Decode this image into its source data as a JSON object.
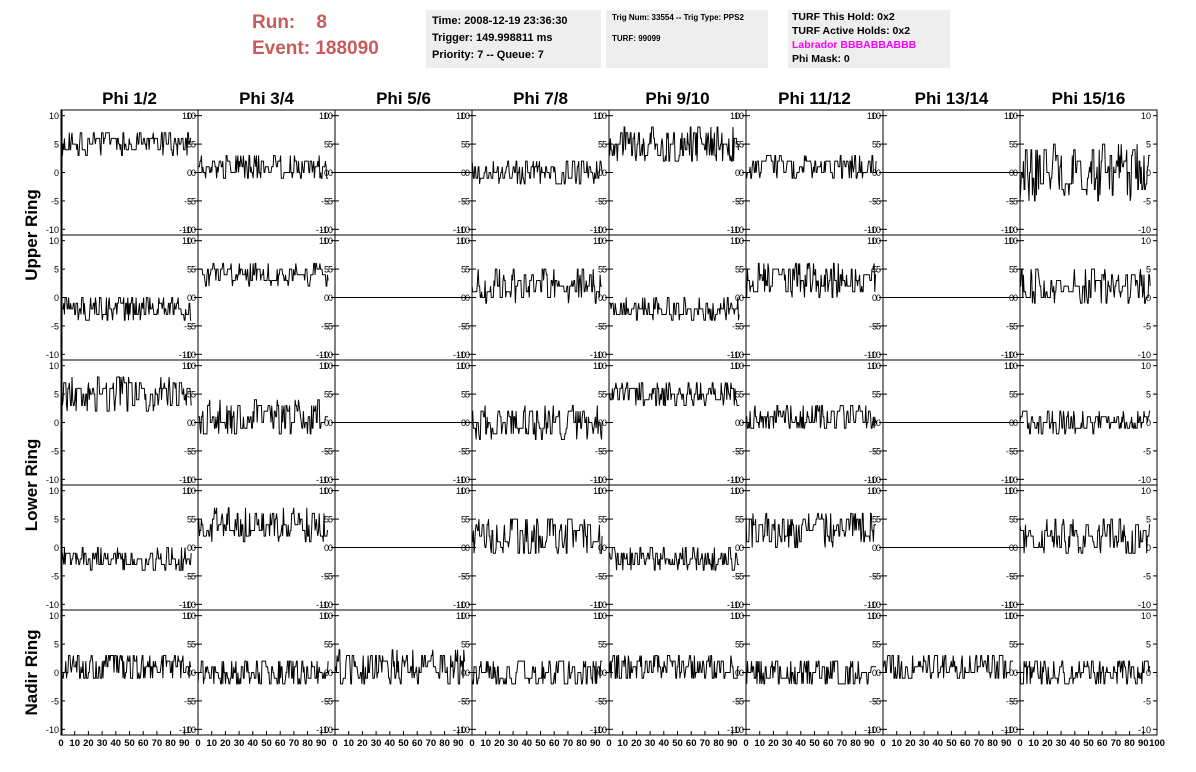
{
  "header": {
    "run_label": "Run:",
    "run_value": "8",
    "event_label": "Event:",
    "event_value": "188090",
    "time": "Time: 2008-12-19 23:36:30",
    "trigger": "Trigger: 149.998811 ms",
    "priority": "Priority: 7 -- Queue: 7",
    "trig_num": "Trig Num: 33554 -- Trig Type: PPS2",
    "turf": "TURF: 99099",
    "turf_this_hold": "TURF This Hold: 0x2",
    "turf_active_holds": "TURF Active Holds: 0x2",
    "labrador": "Labrador BBBABBABBB",
    "phi_mask": "Phi Mask: 0"
  },
  "colors": {
    "title": "#c75b5b",
    "labrador": "#ff00ff",
    "info_bg": "#eeeeee",
    "trace": "#000000"
  },
  "chart_data": {
    "type": "line",
    "grid": false,
    "columns": [
      "Phi 1/2",
      "Phi 3/4",
      "Phi 5/6",
      "Phi 7/8",
      "Phi 9/10",
      "Phi 11/12",
      "Phi 13/14",
      "Phi 15/16"
    ],
    "ring_labels": [
      "Upper Ring",
      "Lower Ring",
      "Nadir Ring"
    ],
    "y_ticks": [
      10,
      5,
      0,
      -5,
      -10
    ],
    "x_ticks": [
      0,
      10,
      20,
      30,
      40,
      50,
      60,
      70,
      80,
      90,
      100
    ],
    "xlim": [
      0,
      100
    ],
    "ylim": [
      -11,
      11
    ],
    "panel_rows": [
      {
        "panels": [
          {
            "col": "Phi 1/2",
            "baseline": 5,
            "noise": 2,
            "flat": false
          },
          {
            "col": "Phi 3/4",
            "baseline": 1,
            "noise": 2,
            "flat": false
          },
          {
            "col": "Phi 5/6",
            "baseline": 0,
            "noise": 0,
            "flat": true
          },
          {
            "col": "Phi 7/8",
            "baseline": 0,
            "noise": 2,
            "flat": false
          },
          {
            "col": "Phi 9/10",
            "baseline": 5,
            "noise": 3,
            "flat": false
          },
          {
            "col": "Phi 11/12",
            "baseline": 1,
            "noise": 2,
            "flat": false
          },
          {
            "col": "Phi 13/14",
            "baseline": 0,
            "noise": 0,
            "flat": true
          },
          {
            "col": "Phi 15/16",
            "baseline": 0,
            "noise": 5,
            "flat": false
          }
        ]
      },
      {
        "panels": [
          {
            "col": "Phi 1/2",
            "baseline": -2,
            "noise": 2,
            "flat": false
          },
          {
            "col": "Phi 3/4",
            "baseline": 4,
            "noise": 2,
            "flat": false
          },
          {
            "col": "Phi 5/6",
            "baseline": 0,
            "noise": 0,
            "flat": true
          },
          {
            "col": "Phi 7/8",
            "baseline": 2,
            "noise": 3,
            "flat": false
          },
          {
            "col": "Phi 9/10",
            "baseline": -2,
            "noise": 2,
            "flat": false
          },
          {
            "col": "Phi 11/12",
            "baseline": 3,
            "noise": 3,
            "flat": false
          },
          {
            "col": "Phi 13/14",
            "baseline": 0,
            "noise": 0,
            "flat": true
          },
          {
            "col": "Phi 15/16",
            "baseline": 2,
            "noise": 3,
            "flat": false
          }
        ]
      },
      {
        "panels": [
          {
            "col": "Phi 1/2",
            "baseline": 5,
            "noise": 3,
            "flat": false
          },
          {
            "col": "Phi 3/4",
            "baseline": 1,
            "noise": 3,
            "flat": false
          },
          {
            "col": "Phi 5/6",
            "baseline": 0,
            "noise": 0,
            "flat": true
          },
          {
            "col": "Phi 7/8",
            "baseline": 0,
            "noise": 3,
            "flat": false
          },
          {
            "col": "Phi 9/10",
            "baseline": 5,
            "noise": 2,
            "flat": false
          },
          {
            "col": "Phi 11/12",
            "baseline": 1,
            "noise": 2,
            "flat": false
          },
          {
            "col": "Phi 13/14",
            "baseline": 0,
            "noise": 0,
            "flat": true
          },
          {
            "col": "Phi 15/16",
            "baseline": 0,
            "noise": 2,
            "flat": false
          }
        ]
      },
      {
        "panels": [
          {
            "col": "Phi 1/2",
            "baseline": -2,
            "noise": 2,
            "flat": false
          },
          {
            "col": "Phi 3/4",
            "baseline": 4,
            "noise": 3,
            "flat": false
          },
          {
            "col": "Phi 5/6",
            "baseline": 0,
            "noise": 0,
            "flat": true
          },
          {
            "col": "Phi 7/8",
            "baseline": 2,
            "noise": 3,
            "flat": false
          },
          {
            "col": "Phi 9/10",
            "baseline": -2,
            "noise": 2,
            "flat": false
          },
          {
            "col": "Phi 11/12",
            "baseline": 3,
            "noise": 3,
            "flat": false
          },
          {
            "col": "Phi 13/14",
            "baseline": 0,
            "noise": 0,
            "flat": true
          },
          {
            "col": "Phi 15/16",
            "baseline": 2,
            "noise": 3,
            "flat": false
          }
        ]
      },
      {
        "panels": [
          {
            "col": "Phi 1/2",
            "baseline": 1,
            "noise": 2.5,
            "flat": false
          },
          {
            "col": "Phi 3/4",
            "baseline": 0,
            "noise": 2.5,
            "flat": false
          },
          {
            "col": "Phi 5/6",
            "baseline": 1,
            "noise": 3,
            "flat": false
          },
          {
            "col": "Phi 7/8",
            "baseline": 0,
            "noise": 2.5,
            "flat": false
          },
          {
            "col": "Phi 9/10",
            "baseline": 1,
            "noise": 2.5,
            "flat": false
          },
          {
            "col": "Phi 11/12",
            "baseline": 0,
            "noise": 2.5,
            "flat": false
          },
          {
            "col": "Phi 13/14",
            "baseline": 1,
            "noise": 2.5,
            "flat": false
          },
          {
            "col": "Phi 15/16",
            "baseline": 0,
            "noise": 2.5,
            "flat": false
          }
        ]
      }
    ]
  }
}
